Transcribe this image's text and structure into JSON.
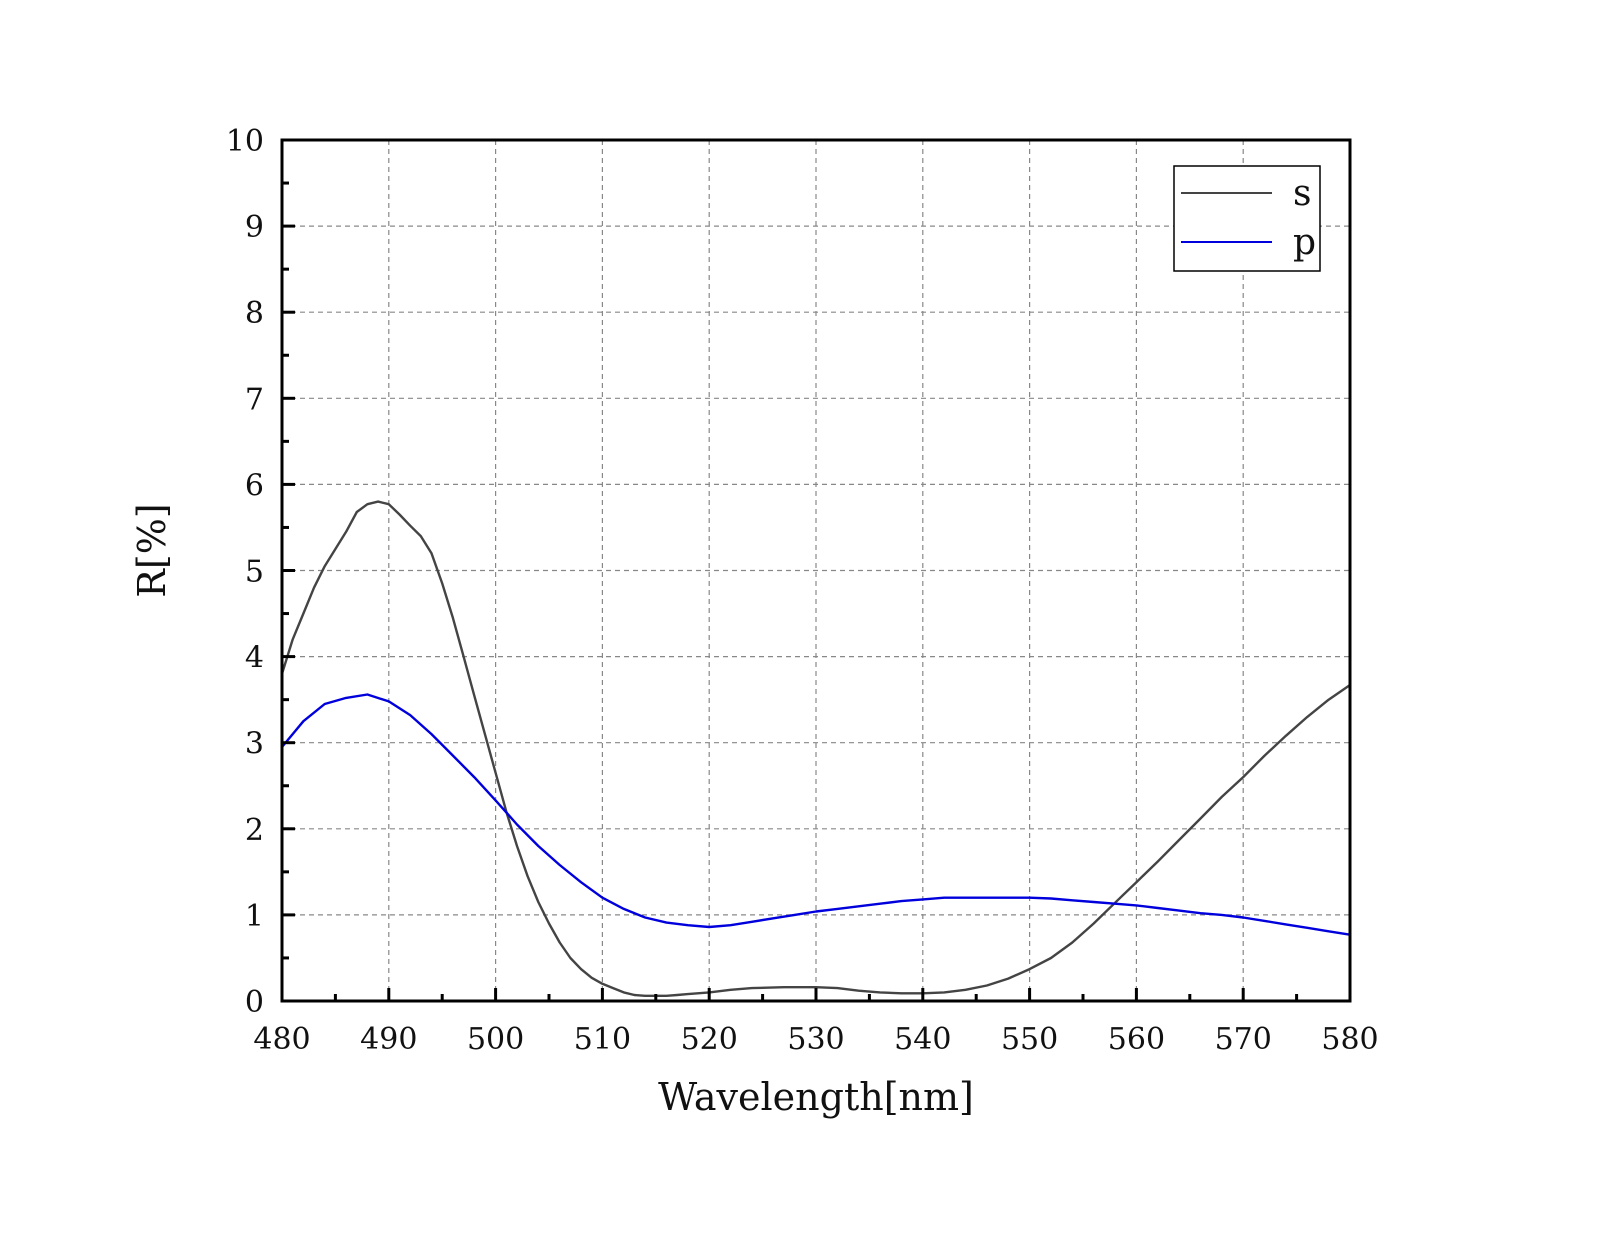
{
  "chart_data": {
    "type": "line",
    "title": "",
    "xlabel": "Wavelength[nm]",
    "ylabel": "R[%]",
    "xlim": [
      480,
      580
    ],
    "ylim": [
      0,
      10
    ],
    "x_ticks": [
      480,
      490,
      500,
      510,
      520,
      530,
      540,
      550,
      560,
      570,
      580
    ],
    "y_ticks": [
      0,
      1,
      2,
      3,
      4,
      5,
      6,
      7,
      8,
      9,
      10
    ],
    "grid": true,
    "legend_position": "top-right",
    "series": [
      {
        "name": "s",
        "color": "#444444",
        "points": [
          [
            480,
            3.8
          ],
          [
            481,
            4.2
          ],
          [
            482,
            4.5
          ],
          [
            483,
            4.8
          ],
          [
            484,
            5.05
          ],
          [
            485,
            5.25
          ],
          [
            486,
            5.45
          ],
          [
            487,
            5.68
          ],
          [
            488,
            5.77
          ],
          [
            489,
            5.8
          ],
          [
            490,
            5.77
          ],
          [
            491,
            5.65
          ],
          [
            492,
            5.52
          ],
          [
            493,
            5.4
          ],
          [
            494,
            5.2
          ],
          [
            495,
            4.85
          ],
          [
            496,
            4.45
          ],
          [
            497,
            4.0
          ],
          [
            498,
            3.55
          ],
          [
            499,
            3.1
          ],
          [
            500,
            2.65
          ],
          [
            501,
            2.2
          ],
          [
            502,
            1.8
          ],
          [
            503,
            1.45
          ],
          [
            504,
            1.15
          ],
          [
            505,
            0.9
          ],
          [
            506,
            0.68
          ],
          [
            507,
            0.5
          ],
          [
            508,
            0.37
          ],
          [
            509,
            0.27
          ],
          [
            510,
            0.2
          ],
          [
            511,
            0.15
          ],
          [
            512,
            0.1
          ],
          [
            513,
            0.07
          ],
          [
            514,
            0.06
          ],
          [
            515,
            0.06
          ],
          [
            516,
            0.06
          ],
          [
            517,
            0.07
          ],
          [
            518,
            0.08
          ],
          [
            520,
            0.1
          ],
          [
            522,
            0.13
          ],
          [
            524,
            0.15
          ],
          [
            527,
            0.16
          ],
          [
            530,
            0.16
          ],
          [
            532,
            0.15
          ],
          [
            534,
            0.12
          ],
          [
            536,
            0.1
          ],
          [
            538,
            0.09
          ],
          [
            540,
            0.09
          ],
          [
            542,
            0.1
          ],
          [
            544,
            0.13
          ],
          [
            546,
            0.18
          ],
          [
            548,
            0.26
          ],
          [
            550,
            0.37
          ],
          [
            552,
            0.5
          ],
          [
            554,
            0.68
          ],
          [
            556,
            0.9
          ],
          [
            558,
            1.14
          ],
          [
            560,
            1.38
          ],
          [
            562,
            1.62
          ],
          [
            564,
            1.87
          ],
          [
            566,
            2.12
          ],
          [
            568,
            2.37
          ],
          [
            570,
            2.6
          ],
          [
            572,
            2.85
          ],
          [
            574,
            3.08
          ],
          [
            576,
            3.3
          ],
          [
            578,
            3.5
          ],
          [
            580,
            3.67
          ]
        ]
      },
      {
        "name": "p",
        "color": "#0000dd",
        "points": [
          [
            480,
            2.95
          ],
          [
            482,
            3.25
          ],
          [
            484,
            3.45
          ],
          [
            486,
            3.52
          ],
          [
            488,
            3.56
          ],
          [
            490,
            3.48
          ],
          [
            492,
            3.32
          ],
          [
            494,
            3.1
          ],
          [
            496,
            2.85
          ],
          [
            498,
            2.6
          ],
          [
            500,
            2.33
          ],
          [
            502,
            2.05
          ],
          [
            504,
            1.8
          ],
          [
            506,
            1.58
          ],
          [
            508,
            1.38
          ],
          [
            510,
            1.2
          ],
          [
            512,
            1.07
          ],
          [
            514,
            0.97
          ],
          [
            516,
            0.91
          ],
          [
            518,
            0.88
          ],
          [
            520,
            0.86
          ],
          [
            522,
            0.88
          ],
          [
            524,
            0.92
          ],
          [
            526,
            0.96
          ],
          [
            528,
            1.0
          ],
          [
            530,
            1.04
          ],
          [
            532,
            1.07
          ],
          [
            534,
            1.1
          ],
          [
            536,
            1.13
          ],
          [
            538,
            1.16
          ],
          [
            540,
            1.18
          ],
          [
            542,
            1.2
          ],
          [
            544,
            1.2
          ],
          [
            546,
            1.2
          ],
          [
            548,
            1.2
          ],
          [
            550,
            1.2
          ],
          [
            552,
            1.19
          ],
          [
            554,
            1.17
          ],
          [
            556,
            1.15
          ],
          [
            558,
            1.13
          ],
          [
            560,
            1.11
          ],
          [
            562,
            1.08
          ],
          [
            564,
            1.05
          ],
          [
            566,
            1.02
          ],
          [
            568,
            1.0
          ],
          [
            570,
            0.97
          ],
          [
            572,
            0.93
          ],
          [
            574,
            0.89
          ],
          [
            576,
            0.85
          ],
          [
            578,
            0.81
          ],
          [
            580,
            0.77
          ]
        ]
      }
    ]
  }
}
